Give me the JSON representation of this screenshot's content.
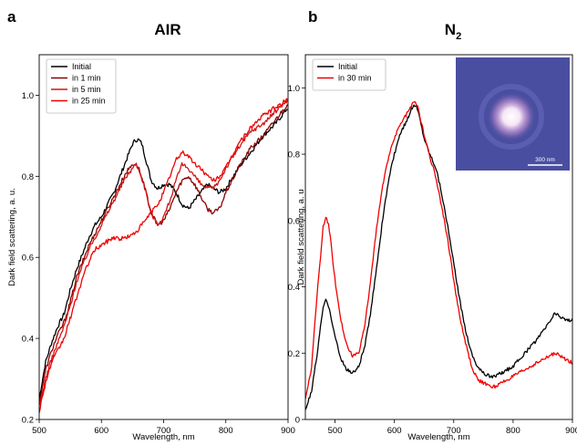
{
  "chart_data": [
    {
      "type": "line",
      "panel_letter": "a",
      "title": "AIR",
      "xlabel": "Wavelength, nm",
      "ylabel": "Dark field scattering, a. u.",
      "xlim": [
        500,
        900
      ],
      "ylim": [
        0.2,
        1.1
      ],
      "xticks": [
        500,
        600,
        700,
        800,
        900
      ],
      "yticks": [
        0.2,
        0.4,
        0.6,
        0.8,
        1.0
      ],
      "xtick_labels": [
        "500",
        "600",
        "700",
        "800",
        "900"
      ],
      "ytick_labels": [
        "0.2",
        "0.4",
        "0.6",
        "0.8",
        "1.0"
      ],
      "legend_position": "top-left",
      "series": [
        {
          "name": "Initial",
          "color": "#000000",
          "x": [
            500,
            510,
            520,
            530,
            540,
            550,
            560,
            570,
            580,
            590,
            600,
            610,
            620,
            630,
            640,
            650,
            655,
            660,
            665,
            670,
            680,
            690,
            700,
            710,
            720,
            730,
            740,
            750,
            760,
            770,
            780,
            790,
            800,
            820,
            840,
            860,
            880,
            900
          ],
          "y": [
            0.25,
            0.34,
            0.39,
            0.43,
            0.46,
            0.52,
            0.57,
            0.61,
            0.65,
            0.68,
            0.7,
            0.73,
            0.76,
            0.8,
            0.84,
            0.88,
            0.89,
            0.89,
            0.88,
            0.85,
            0.79,
            0.77,
            0.78,
            0.78,
            0.76,
            0.73,
            0.72,
            0.74,
            0.76,
            0.78,
            0.77,
            0.76,
            0.77,
            0.82,
            0.86,
            0.9,
            0.93,
            0.97
          ]
        },
        {
          "name": "in 1 min",
          "color": "#8b0000",
          "x": [
            500,
            510,
            520,
            530,
            540,
            550,
            560,
            570,
            580,
            590,
            600,
            610,
            620,
            630,
            640,
            650,
            655,
            660,
            670,
            680,
            690,
            700,
            710,
            720,
            730,
            740,
            750,
            760,
            770,
            780,
            790,
            800,
            820,
            840,
            860,
            880,
            900
          ],
          "y": [
            0.24,
            0.32,
            0.37,
            0.41,
            0.44,
            0.49,
            0.55,
            0.59,
            0.63,
            0.66,
            0.69,
            0.72,
            0.75,
            0.78,
            0.81,
            0.83,
            0.83,
            0.82,
            0.77,
            0.71,
            0.68,
            0.69,
            0.72,
            0.76,
            0.79,
            0.8,
            0.78,
            0.75,
            0.72,
            0.71,
            0.72,
            0.76,
            0.82,
            0.87,
            0.9,
            0.94,
            0.98
          ]
        },
        {
          "name": "in 5 min",
          "color": "#d21414",
          "x": [
            500,
            510,
            520,
            530,
            540,
            550,
            560,
            570,
            580,
            590,
            600,
            610,
            620,
            630,
            640,
            650,
            655,
            660,
            670,
            680,
            690,
            700,
            710,
            720,
            730,
            740,
            750,
            760,
            770,
            780,
            790,
            800,
            820,
            840,
            860,
            880,
            900
          ],
          "y": [
            0.23,
            0.3,
            0.35,
            0.39,
            0.43,
            0.48,
            0.54,
            0.58,
            0.62,
            0.65,
            0.68,
            0.71,
            0.74,
            0.77,
            0.8,
            0.82,
            0.83,
            0.82,
            0.77,
            0.71,
            0.68,
            0.7,
            0.74,
            0.79,
            0.83,
            0.82,
            0.8,
            0.78,
            0.77,
            0.77,
            0.79,
            0.82,
            0.87,
            0.91,
            0.93,
            0.96,
            0.99
          ]
        },
        {
          "name": "in 25 min",
          "color": "#f00000",
          "x": [
            500,
            510,
            520,
            530,
            540,
            550,
            560,
            570,
            580,
            590,
            600,
            610,
            620,
            630,
            640,
            650,
            660,
            670,
            680,
            690,
            700,
            710,
            720,
            730,
            740,
            750,
            760,
            770,
            780,
            790,
            800,
            820,
            840,
            860,
            880,
            900
          ],
          "y": [
            0.22,
            0.29,
            0.34,
            0.37,
            0.4,
            0.45,
            0.5,
            0.55,
            0.59,
            0.62,
            0.63,
            0.64,
            0.65,
            0.645,
            0.65,
            0.655,
            0.67,
            0.69,
            0.71,
            0.73,
            0.76,
            0.8,
            0.84,
            0.86,
            0.85,
            0.83,
            0.82,
            0.8,
            0.79,
            0.8,
            0.82,
            0.88,
            0.92,
            0.95,
            0.97,
            0.99
          ]
        }
      ]
    },
    {
      "type": "line",
      "panel_letter": "b",
      "title": "N",
      "title_subscript": "2",
      "xlabel": "Wavelength, nm",
      "ylabel": "Dark field scattering, a. u",
      "xlim": [
        450,
        900
      ],
      "ylim": [
        0,
        1.1
      ],
      "xticks": [
        500,
        600,
        700,
        800,
        900
      ],
      "yticks": [
        0,
        0.2,
        0.4,
        0.6,
        0.8,
        1.0
      ],
      "xtick_labels": [
        "500",
        "600",
        "700",
        "800",
        "900"
      ],
      "ytick_labels": [
        "0",
        "0.2",
        "0.4",
        "0.6",
        "0.8",
        "1.0"
      ],
      "legend_position": "top-left",
      "inset": {
        "scale_bar_label": "300 nm",
        "background_color": "#4a4ea0"
      },
      "series": [
        {
          "name": "Initial",
          "color": "#000000",
          "x": [
            450,
            460,
            470,
            480,
            485,
            490,
            500,
            510,
            520,
            530,
            540,
            550,
            560,
            570,
            580,
            590,
            600,
            610,
            620,
            630,
            635,
            640,
            650,
            660,
            670,
            680,
            690,
            700,
            710,
            720,
            730,
            740,
            750,
            760,
            770,
            780,
            790,
            800,
            820,
            840,
            860,
            870,
            880,
            890,
            900
          ],
          "y": [
            0.03,
            0.08,
            0.2,
            0.34,
            0.36,
            0.34,
            0.25,
            0.18,
            0.15,
            0.14,
            0.16,
            0.22,
            0.32,
            0.46,
            0.6,
            0.72,
            0.8,
            0.86,
            0.9,
            0.94,
            0.95,
            0.93,
            0.85,
            0.8,
            0.76,
            0.68,
            0.58,
            0.47,
            0.36,
            0.27,
            0.2,
            0.16,
            0.14,
            0.13,
            0.13,
            0.14,
            0.15,
            0.16,
            0.2,
            0.24,
            0.29,
            0.32,
            0.31,
            0.3,
            0.3
          ]
        },
        {
          "name": "in 30 min",
          "color": "#f00000",
          "x": [
            450,
            460,
            470,
            480,
            485,
            490,
            500,
            510,
            520,
            530,
            540,
            550,
            560,
            570,
            580,
            590,
            600,
            610,
            620,
            630,
            635,
            640,
            650,
            660,
            670,
            680,
            690,
            700,
            710,
            720,
            730,
            740,
            750,
            760,
            770,
            780,
            790,
            800,
            820,
            840,
            860,
            870,
            880,
            890,
            900
          ],
          "y": [
            0.06,
            0.15,
            0.38,
            0.58,
            0.61,
            0.58,
            0.42,
            0.3,
            0.22,
            0.19,
            0.2,
            0.28,
            0.42,
            0.58,
            0.7,
            0.79,
            0.85,
            0.89,
            0.92,
            0.95,
            0.96,
            0.94,
            0.86,
            0.79,
            0.73,
            0.64,
            0.54,
            0.42,
            0.31,
            0.23,
            0.16,
            0.12,
            0.11,
            0.1,
            0.1,
            0.11,
            0.12,
            0.13,
            0.15,
            0.17,
            0.19,
            0.2,
            0.19,
            0.18,
            0.17
          ]
        }
      ]
    }
  ]
}
